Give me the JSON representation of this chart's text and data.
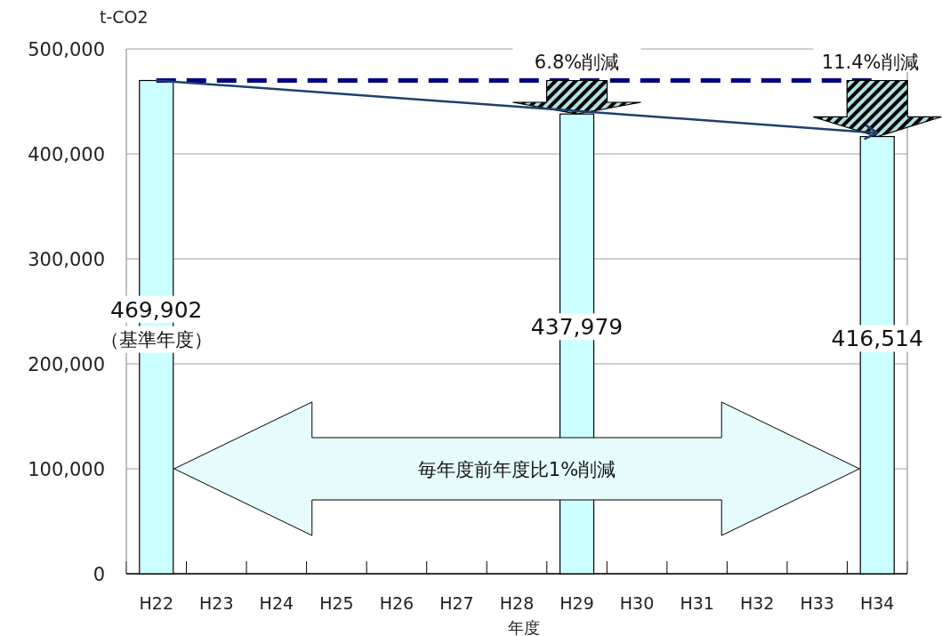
{
  "chart_data": {
    "type": "bar",
    "xlabel": "年度",
    "ylabel": "t-CO2",
    "categories": [
      "H22",
      "H23",
      "H24",
      "H25",
      "H26",
      "H27",
      "H28",
      "H29",
      "H30",
      "H31",
      "H32",
      "H33",
      "H34"
    ],
    "series": [
      {
        "color": "#ccffff",
        "values": [
          469902,
          null,
          null,
          null,
          null,
          null,
          null,
          437979,
          null,
          null,
          null,
          null,
          416514
        ],
        "value_labels": [
          "469,902",
          null,
          null,
          null,
          null,
          null,
          null,
          "437,979",
          null,
          null,
          null,
          null,
          "416,514"
        ]
      },
      {
        "type": "line",
        "color": "#1f3f6f",
        "x": [
          "H22",
          "H34"
        ],
        "values": [
          470000,
          420000
        ]
      }
    ],
    "ylim": [
      0,
      500000
    ],
    "yticks": [
      0,
      {
        "value": 100000,
        "label": "100,000"
      },
      {
        "value": 200000,
        "label": "200,000"
      },
      {
        "value": 300000,
        "label": "300,000"
      },
      {
        "value": 400000,
        "label": "400,000"
      },
      {
        "value": 500000,
        "label": "500,000"
      }
    ],
    "grid": "y",
    "ref_lines": [
      {
        "axis": "y",
        "value": 469902,
        "color": "#000080",
        "line_style": "dashed"
      }
    ],
    "annotations": [
      "（基準年度）",
      "6.8%削減",
      "11.4%削減",
      "毎年度前年度比1%削減"
    ]
  }
}
